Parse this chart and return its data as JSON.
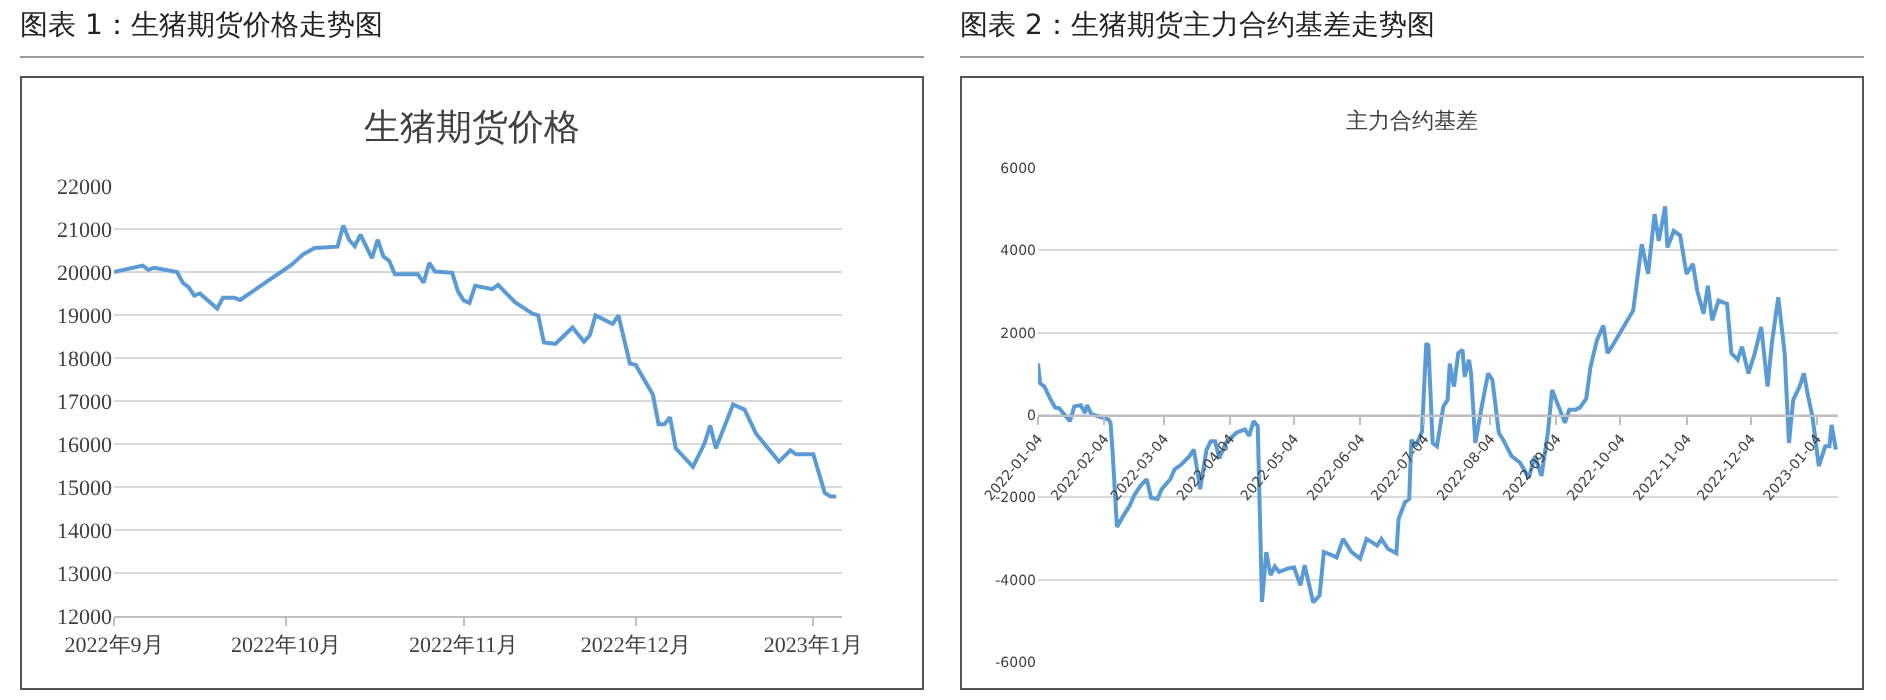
{
  "chart_data": [
    {
      "type": "line",
      "title": "生猪期货价格",
      "annotations": [
        "图表 1：生猪期货价格走势图"
      ],
      "x": [
        "2022-09-01",
        "2022-09-06",
        "2022-09-07",
        "2022-09-08",
        "2022-09-12",
        "2022-09-13",
        "2022-09-14",
        "2022-09-15",
        "2022-09-16",
        "2022-09-19",
        "2022-09-20",
        "2022-09-22",
        "2022-09-23",
        "2022-10-02",
        "2022-10-04",
        "2022-10-06",
        "2022-10-10",
        "2022-10-11",
        "2022-10-12",
        "2022-10-13",
        "2022-10-14",
        "2022-10-16",
        "2022-10-17",
        "2022-10-18",
        "2022-10-19",
        "2022-10-20",
        "2022-10-24",
        "2022-10-25",
        "2022-10-26",
        "2022-10-27",
        "2022-10-30",
        "2022-10-31",
        "2022-11-01",
        "2022-11-02",
        "2022-11-03",
        "2022-11-06",
        "2022-11-07",
        "2022-11-10",
        "2022-11-13",
        "2022-11-14",
        "2022-11-15",
        "2022-11-17",
        "2022-11-20",
        "2022-11-22",
        "2022-11-23",
        "2022-11-24",
        "2022-11-27",
        "2022-11-28",
        "2022-11-30",
        "2022-12-01",
        "2022-12-04",
        "2022-12-05",
        "2022-12-06",
        "2022-12-07",
        "2022-12-08",
        "2022-12-11",
        "2022-12-13",
        "2022-12-14",
        "2022-12-15",
        "2022-12-18",
        "2022-12-20",
        "2022-12-22",
        "2022-12-26",
        "2022-12-28",
        "2022-12-29",
        "2023-01-01",
        "2023-01-03",
        "2023-01-04",
        "2023-01-05"
      ],
      "series": [
        {
          "color": "#5b9bd5",
          "values": [
            20000,
            20150,
            20050,
            20100,
            20000,
            19750,
            19650,
            19450,
            19500,
            19150,
            19400,
            19400,
            19350,
            20170,
            20410,
            20560,
            20590,
            21080,
            20750,
            20600,
            20870,
            20320,
            20750,
            20360,
            20260,
            19950,
            19950,
            19750,
            20210,
            20010,
            19980,
            19550,
            19340,
            19280,
            19680,
            19600,
            19700,
            19290,
            19030,
            18990,
            18360,
            18330,
            18710,
            18380,
            18530,
            18990,
            18790,
            18990,
            17870,
            17840,
            17150,
            16460,
            16460,
            16620,
            15900,
            15470,
            16010,
            16430,
            15900,
            16920,
            16800,
            16240,
            15590,
            15850,
            15760,
            15760,
            14860,
            14780,
            14780
          ]
        }
      ],
      "xlim": [
        "2022-09-01",
        "2023-01-06"
      ],
      "xticks": [
        {
          "value": "2022-09-01",
          "label": "2022年9月"
        },
        {
          "value": "2022-10-01",
          "label": "2022年10月"
        },
        {
          "value": "2022-11-01",
          "label": "2022年11月"
        },
        {
          "value": "2022-12-01",
          "label": "2022年12月"
        },
        {
          "value": "2023-01-01",
          "label": "2023年1月"
        }
      ],
      "ylim": [
        12000,
        22000
      ],
      "yticks": [
        12000,
        13000,
        14000,
        15000,
        16000,
        17000,
        18000,
        19000,
        20000,
        21000,
        22000
      ],
      "grid": "y"
    },
    {
      "type": "line",
      "title": "主力合约基差",
      "annotations": [
        "图表 2：生猪期货主力合约基差走势图"
      ],
      "x": [
        "2022-01-04",
        "2022-01-05",
        "2022-01-07",
        "2022-01-10",
        "2022-01-12",
        "2022-01-14",
        "2022-01-17",
        "2022-01-19",
        "2022-01-21",
        "2022-01-24",
        "2022-01-26",
        "2022-01-27",
        "2022-01-29",
        "2022-02-06",
        "2022-02-07",
        "2022-02-08",
        "2022-02-10",
        "2022-02-13",
        "2022-02-16",
        "2022-02-18",
        "2022-02-21",
        "2022-02-24",
        "2022-02-26",
        "2022-03-01",
        "2022-03-03",
        "2022-03-07",
        "2022-03-09",
        "2022-03-12",
        "2022-03-16",
        "2022-03-18",
        "2022-03-19",
        "2022-03-21",
        "2022-03-24",
        "2022-03-26",
        "2022-03-28",
        "2022-03-30",
        "2022-04-02",
        "2022-04-07",
        "2022-04-11",
        "2022-04-13",
        "2022-04-15",
        "2022-04-17",
        "2022-04-19",
        "2022-04-21",
        "2022-04-23",
        "2022-04-25",
        "2022-04-27",
        "2022-05-01",
        "2022-05-04",
        "2022-05-07",
        "2022-05-09",
        "2022-05-13",
        "2022-05-16",
        "2022-05-18",
        "2022-05-22",
        "2022-05-24",
        "2022-05-27",
        "2022-05-31",
        "2022-06-04",
        "2022-06-07",
        "2022-06-12",
        "2022-06-14",
        "2022-06-17",
        "2022-06-21",
        "2022-06-22",
        "2022-06-25",
        "2022-06-27",
        "2022-06-28",
        "2022-06-30",
        "2022-07-03",
        "2022-07-05",
        "2022-07-06",
        "2022-07-08",
        "2022-07-10",
        "2022-07-13",
        "2022-07-15",
        "2022-07-16",
        "2022-07-18",
        "2022-07-20",
        "2022-07-22",
        "2022-07-23",
        "2022-07-25",
        "2022-07-26",
        "2022-07-28",
        "2022-07-31",
        "2022-08-03",
        "2022-08-05",
        "2022-08-08",
        "2022-08-10",
        "2022-08-14",
        "2022-08-18",
        "2022-08-22",
        "2022-08-25",
        "2022-08-28",
        "2022-08-31",
        "2022-09-02",
        "2022-09-05",
        "2022-09-08",
        "2022-09-10",
        "2022-09-13",
        "2022-09-15",
        "2022-09-18",
        "2022-09-20",
        "2022-09-23",
        "2022-09-26",
        "2022-09-28",
        "2022-09-30",
        "2022-10-10",
        "2022-10-14",
        "2022-10-17",
        "2022-10-20",
        "2022-10-22",
        "2022-10-25",
        "2022-10-26",
        "2022-10-29",
        "2022-11-01",
        "2022-11-04",
        "2022-11-07",
        "2022-11-09",
        "2022-11-12",
        "2022-11-14",
        "2022-11-16",
        "2022-11-19",
        "2022-11-23",
        "2022-11-25",
        "2022-11-28",
        "2022-11-30",
        "2022-12-03",
        "2022-12-06",
        "2022-12-09",
        "2022-12-12",
        "2022-12-14",
        "2022-12-17",
        "2022-12-20",
        "2022-12-22",
        "2022-12-24",
        "2022-12-27",
        "2022-12-29",
        "2022-12-31",
        "2023-01-02",
        "2023-01-05",
        "2023-01-08",
        "2023-01-10",
        "2023-01-11",
        "2023-01-13"
      ],
      "series": [
        {
          "color": "#5b9bd5",
          "values": [
            1250,
            770,
            690,
            370,
            180,
            160,
            -30,
            -150,
            210,
            240,
            50,
            240,
            20,
            -110,
            -190,
            -920,
            -2720,
            -2450,
            -2200,
            -1960,
            -1720,
            -1560,
            -2010,
            -2040,
            -1800,
            -1560,
            -1320,
            -1210,
            -1000,
            -840,
            -1130,
            -1800,
            -840,
            -640,
            -640,
            -1050,
            -680,
            -430,
            -350,
            -510,
            -150,
            -270,
            -4540,
            -3330,
            -3890,
            -3680,
            -3810,
            -3730,
            -3700,
            -4140,
            -3650,
            -4550,
            -4380,
            -3330,
            -3410,
            -3460,
            -3010,
            -3330,
            -3490,
            -3010,
            -3170,
            -3010,
            -3250,
            -3360,
            -2530,
            -2120,
            -2040,
            -600,
            -760,
            -400,
            1740,
            1690,
            -680,
            -760,
            210,
            370,
            1250,
            690,
            1500,
            1580,
            930,
            1340,
            1010,
            -680,
            210,
            1010,
            850,
            -430,
            -600,
            -1000,
            -1160,
            -1530,
            -1000,
            -1480,
            -430,
            610,
            210,
            -190,
            130,
            130,
            180,
            400,
            1170,
            1820,
            2170,
            1500,
            1660,
            2540,
            4150,
            3430,
            4880,
            4230,
            5070,
            4070,
            4470,
            4360,
            3430,
            3670,
            3020,
            2460,
            3140,
            2300,
            2780,
            2700,
            1500,
            1340,
            1660,
            1010,
            1500,
            2140,
            690,
            1740,
            2860,
            1500,
            -680,
            370,
            690,
            1010,
            450,
            -30,
            -1240,
            -760,
            -760,
            -240,
            -840
          ]
        }
      ],
      "xlim": [
        "2022-01-04",
        "2023-01-14"
      ],
      "xticks": [
        "2022-01-04",
        "2022-02-04",
        "2022-03-04",
        "2022-04-04",
        "2022-05-04",
        "2022-06-04",
        "2022-07-04",
        "2022-08-04",
        "2022-09-04",
        "2022-10-04",
        "2022-11-04",
        "2022-12-04",
        "2023-01-04"
      ],
      "ylim": [
        -6000,
        6000
      ],
      "yticks": [
        -6000,
        -4000,
        -2000,
        0,
        2000,
        4000,
        6000
      ],
      "grid": "y"
    }
  ]
}
